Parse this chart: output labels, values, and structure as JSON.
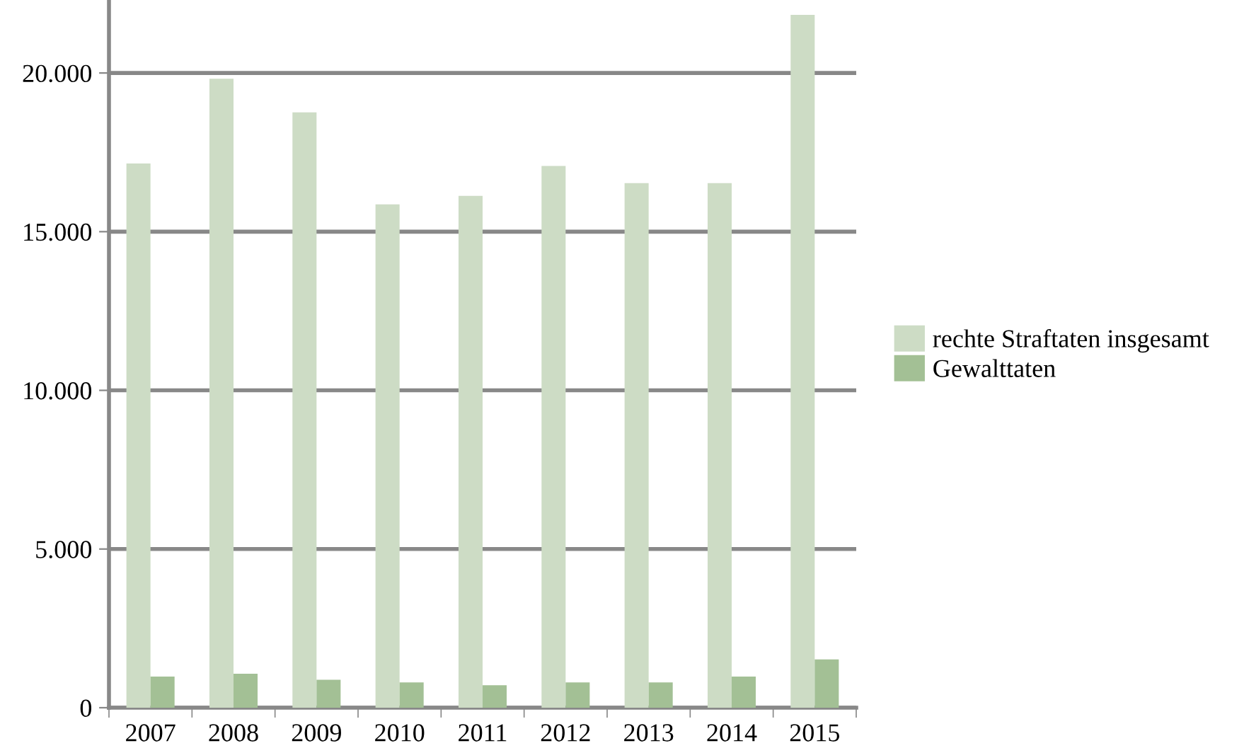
{
  "chart_data": {
    "type": "bar",
    "categories": [
      "2007",
      "2008",
      "2009",
      "2010",
      "2011",
      "2012",
      "2013",
      "2014",
      "2015"
    ],
    "series": [
      {
        "name": "rechte Straftaten insgesamt",
        "color": "#cddcc5",
        "values": [
          17150,
          19820,
          18760,
          15860,
          16130,
          17070,
          16530,
          16530,
          21830
        ]
      },
      {
        "name": "Gewalttaten",
        "color": "#a3c095",
        "values": [
          980,
          1070,
          880,
          800,
          710,
          800,
          800,
          980,
          1520
        ]
      }
    ],
    "ylim": [
      0,
      22300
    ],
    "yticks": [
      0,
      {
        "value": 5000,
        "label": "5.000"
      },
      {
        "value": 10000,
        "label": "10.000"
      },
      {
        "value": 15000,
        "label": "15.000"
      },
      {
        "value": 20000,
        "label": "20.000"
      }
    ],
    "grid": "y",
    "legend": "right"
  }
}
